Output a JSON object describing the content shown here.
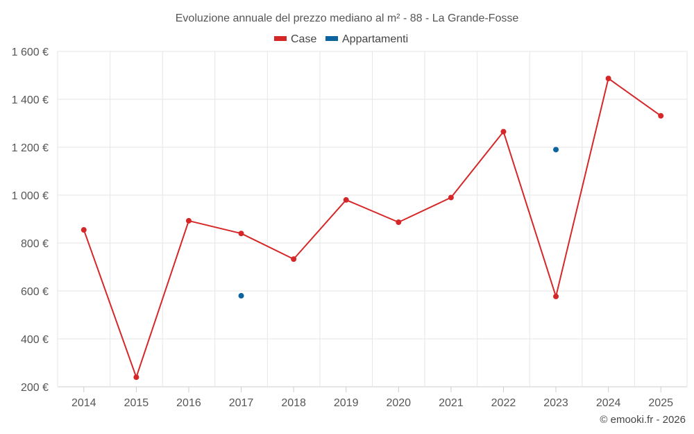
{
  "chart_data": {
    "type": "line",
    "title": "Evoluzione annuale del prezzo mediano al m² - 88 - La Grande-Fosse",
    "categories": [
      "2014",
      "2015",
      "2016",
      "2017",
      "2018",
      "2019",
      "2020",
      "2021",
      "2022",
      "2023",
      "2024",
      "2025"
    ],
    "series": [
      {
        "name": "Case",
        "color": "#d62728",
        "values": [
          855,
          240,
          893,
          840,
          733,
          980,
          887,
          990,
          1265,
          577,
          1487,
          1331
        ]
      },
      {
        "name": "Appartamenti",
        "color": "#0b64a0",
        "values": [
          null,
          null,
          null,
          580,
          null,
          null,
          null,
          null,
          null,
          1190,
          null,
          null
        ]
      }
    ],
    "ylim": [
      200,
      1600
    ],
    "yticks": [
      200,
      400,
      600,
      800,
      1000,
      1200,
      1400,
      1600
    ],
    "ytick_labels": [
      "200 €",
      "400 €",
      "600 €",
      "800 €",
      "1 000 €",
      "1 200 €",
      "1 400 €",
      "1 600 €"
    ],
    "xlabel": "",
    "ylabel": "",
    "grid": true,
    "legend_position": "top-center"
  },
  "credit": "© emooki.fr - 2026"
}
